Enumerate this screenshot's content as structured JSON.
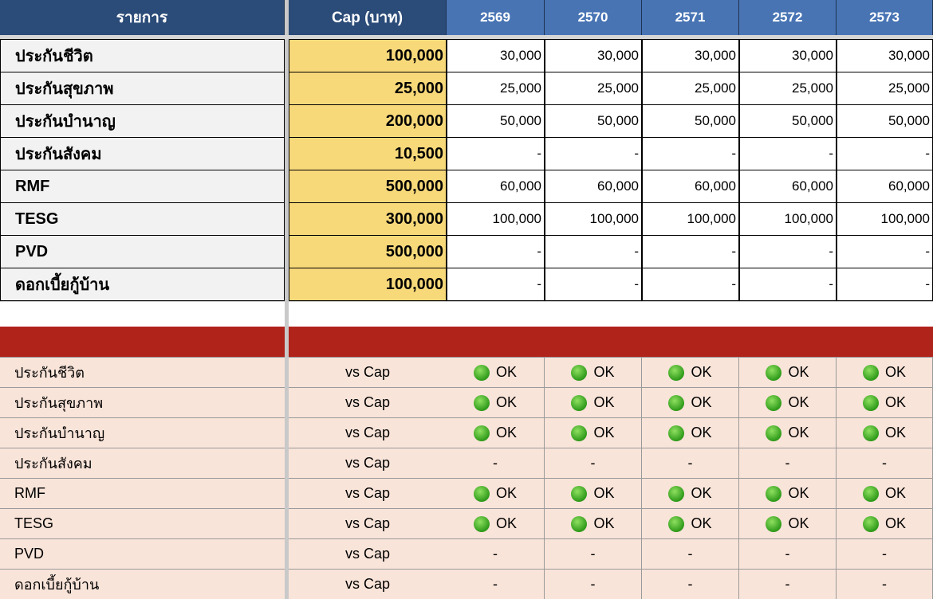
{
  "header": {
    "columns": [
      "รายการ",
      "Cap (บาท)",
      "2569",
      "2570",
      "2571",
      "2572",
      "2573"
    ]
  },
  "top_table": {
    "rows": [
      [
        "ประกันชีวิต",
        "100,000",
        "30,000",
        "30,000",
        "30,000",
        "30,000",
        "30,000"
      ],
      [
        "ประกันสุขภาพ",
        "25,000",
        "25,000",
        "25,000",
        "25,000",
        "25,000",
        "25,000"
      ],
      [
        "ประกันบำนาญ",
        "200,000",
        "50,000",
        "50,000",
        "50,000",
        "50,000",
        "50,000"
      ],
      [
        "ประกันสังคม",
        "10,500",
        "-",
        "-",
        "-",
        "-",
        "-"
      ],
      [
        "RMF",
        "500,000",
        "60,000",
        "60,000",
        "60,000",
        "60,000",
        "60,000"
      ],
      [
        "TESG",
        "300,000",
        "100,000",
        "100,000",
        "100,000",
        "100,000",
        "100,000"
      ],
      [
        "PVD",
        "500,000",
        "-",
        "-",
        "-",
        "-",
        "-"
      ],
      [
        "ดอกเบี้ยกู้บ้าน",
        "100,000",
        "-",
        "-",
        "-",
        "-",
        "-"
      ]
    ]
  },
  "check_table": {
    "rows": [
      [
        "ประกันชีวิต",
        "vs Cap",
        "OK",
        "OK",
        "OK",
        "OK",
        "OK"
      ],
      [
        "ประกันสุขภาพ",
        "vs Cap",
        "OK",
        "OK",
        "OK",
        "OK",
        "OK"
      ],
      [
        "ประกันบำนาญ",
        "vs Cap",
        "OK",
        "OK",
        "OK",
        "OK",
        "OK"
      ],
      [
        "ประกันสังคม",
        "vs Cap",
        "-",
        "-",
        "-",
        "-",
        "-"
      ],
      [
        "RMF",
        "vs Cap",
        "OK",
        "OK",
        "OK",
        "OK",
        "OK"
      ],
      [
        "TESG",
        "vs Cap",
        "OK",
        "OK",
        "OK",
        "OK",
        "OK"
      ],
      [
        "PVD",
        "vs Cap",
        "-",
        "-",
        "-",
        "-",
        "-"
      ],
      [
        "ดอกเบี้ยกู้บ้าน",
        "vs Cap",
        "-",
        "-",
        "-",
        "-",
        "-"
      ]
    ]
  }
}
